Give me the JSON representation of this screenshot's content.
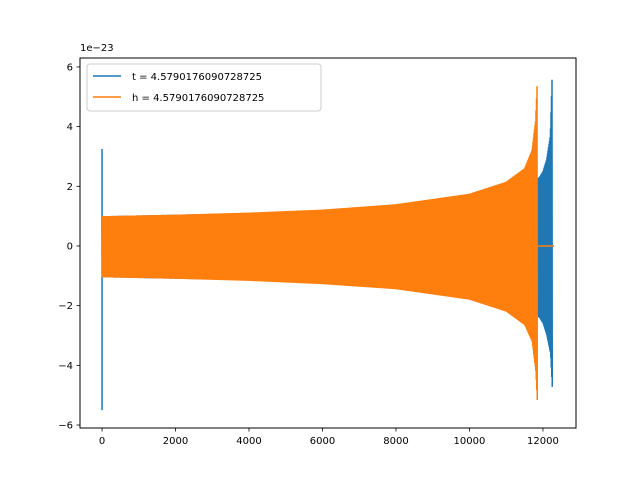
{
  "chart_data": {
    "type": "line",
    "title": "",
    "xlabel": "",
    "ylabel": "",
    "offset_text": "1e−23",
    "xlim": [
      -600,
      12900
    ],
    "ylim": [
      -6.1,
      6.3
    ],
    "xticks": [
      0,
      2000,
      4000,
      6000,
      8000,
      10000,
      12000
    ],
    "xtick_labels": [
      "0",
      "2000",
      "4000",
      "6000",
      "8000",
      "10000",
      "12000"
    ],
    "yticks": [
      -6,
      -4,
      -2,
      0,
      2,
      4,
      6
    ],
    "ytick_labels": [
      "−6",
      "−4",
      "−2",
      "0",
      "2",
      "4",
      "6"
    ],
    "grid": false,
    "legend_position": "upper-left",
    "series": [
      {
        "name": "t = 4.5790176090728725",
        "color": "#1f77b4",
        "note_style": "oscillating envelope",
        "spike_start": {
          "x": 0,
          "ymax": 3.25,
          "ymin": -5.5
        },
        "envelope": [
          {
            "x": 0,
            "upper": 1.0,
            "lower": -1.05
          },
          {
            "x": 2000,
            "upper": 1.05,
            "lower": -1.1
          },
          {
            "x": 4000,
            "upper": 1.1,
            "lower": -1.15
          },
          {
            "x": 6000,
            "upper": 1.2,
            "lower": -1.25
          },
          {
            "x": 8000,
            "upper": 1.35,
            "lower": -1.4
          },
          {
            "x": 10000,
            "upper": 1.6,
            "lower": -1.65
          },
          {
            "x": 11000,
            "upper": 1.85,
            "lower": -1.9
          },
          {
            "x": 11600,
            "upper": 2.1,
            "lower": -2.15
          },
          {
            "x": 11900,
            "upper": 2.3,
            "lower": -2.4
          },
          {
            "x": 12000,
            "upper": 2.5,
            "lower": -2.6
          },
          {
            "x": 12100,
            "upper": 2.9,
            "lower": -3.0
          },
          {
            "x": 12200,
            "upper": 3.7,
            "lower": -3.6
          },
          {
            "x": 12250,
            "upper": 5.7,
            "lower": -4.8
          }
        ],
        "tail": {
          "x_start": 12250,
          "x_end": 12300,
          "y": 0
        }
      },
      {
        "name": "h = 4.5790176090728725",
        "color": "#ff7f0e",
        "spike_start": null,
        "envelope": [
          {
            "x": 0,
            "upper": 1.0,
            "lower": -1.05
          },
          {
            "x": 2000,
            "upper": 1.05,
            "lower": -1.1
          },
          {
            "x": 4000,
            "upper": 1.12,
            "lower": -1.17
          },
          {
            "x": 6000,
            "upper": 1.22,
            "lower": -1.28
          },
          {
            "x": 8000,
            "upper": 1.4,
            "lower": -1.45
          },
          {
            "x": 10000,
            "upper": 1.75,
            "lower": -1.8
          },
          {
            "x": 11000,
            "upper": 2.15,
            "lower": -2.2
          },
          {
            "x": 11500,
            "upper": 2.6,
            "lower": -2.65
          },
          {
            "x": 11700,
            "upper": 3.2,
            "lower": -3.2
          },
          {
            "x": 11800,
            "upper": 4.2,
            "lower": -4.2
          },
          {
            "x": 11850,
            "upper": 5.7,
            "lower": -5.45
          }
        ],
        "tail": {
          "x_start": 11850,
          "x_end": 12300,
          "y": 0
        }
      }
    ]
  }
}
